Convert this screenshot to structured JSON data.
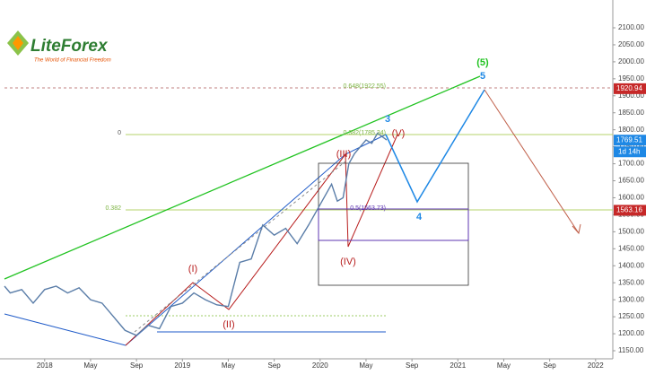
{
  "logo": {
    "brand": "LiteForex",
    "tagline": "The World of Financial Freedom"
  },
  "chart_data": {
    "type": "line",
    "color": "#5a7da8",
    "x": [
      -3.5,
      -3,
      -2,
      -1,
      0,
      1,
      2,
      3,
      4,
      5,
      6,
      7,
      8,
      9,
      10,
      11,
      12,
      13,
      14,
      15,
      16,
      17,
      18,
      19,
      20,
      21,
      22,
      23,
      24,
      25,
      25.5,
      26,
      26.5,
      27,
      28,
      28.5,
      29,
      29.8
    ],
    "values": [
      1340,
      1320,
      1330,
      1290,
      1330,
      1340,
      1320,
      1335,
      1300,
      1290,
      1250,
      1210,
      1195,
      1225,
      1215,
      1280,
      1290,
      1320,
      1300,
      1285,
      1280,
      1410,
      1420,
      1520,
      1490,
      1510,
      1465,
      1520,
      1580,
      1640,
      1590,
      1600,
      1700,
      1730,
      1770,
      1760,
      1790,
      1770
    ],
    "xlim": [
      -3.5,
      49.5
    ],
    "xticks": [
      {
        "value": 0,
        "label": "2018"
      },
      {
        "value": 4,
        "label": "May"
      },
      {
        "value": 8,
        "label": "Sep"
      },
      {
        "value": 12,
        "label": "2019"
      },
      {
        "value": 16,
        "label": "May"
      },
      {
        "value": 20,
        "label": "Sep"
      },
      {
        "value": 24,
        "label": "2020"
      },
      {
        "value": 28,
        "label": "May"
      },
      {
        "value": 32,
        "label": "Sep"
      },
      {
        "value": 36,
        "label": "2021"
      },
      {
        "value": 40,
        "label": "May"
      },
      {
        "value": 44,
        "label": "Sep"
      },
      {
        "value": 48,
        "label": "2022"
      }
    ],
    "ylim": [
      1150,
      2100
    ],
    "yticks": [
      {
        "value": 1150,
        "label": "1150.00"
      },
      {
        "value": 1200,
        "label": "1200.00"
      },
      {
        "value": 1250,
        "label": "1250.00"
      },
      {
        "value": 1300,
        "label": "1300.00"
      },
      {
        "value": 1350,
        "label": "1350.00"
      },
      {
        "value": 1400,
        "label": "1400.00"
      },
      {
        "value": 1450,
        "label": "1450.00"
      },
      {
        "value": 1500,
        "label": "1500.00"
      },
      {
        "value": 1550,
        "label": "1550.00"
      },
      {
        "value": 1600,
        "label": "1600.00"
      },
      {
        "value": 1650,
        "label": "1650.00"
      },
      {
        "value": 1700,
        "label": "1700.00"
      },
      {
        "value": 1750,
        "label": "1750.00"
      },
      {
        "value": 1800,
        "label": "1800.00"
      },
      {
        "value": 1850,
        "label": "1850.00"
      },
      {
        "value": 1900,
        "label": "1900.00"
      },
      {
        "value": 1950,
        "label": "1950.00"
      },
      {
        "value": 2000,
        "label": "2000.00"
      },
      {
        "value": 2050,
        "label": "2050.00"
      },
      {
        "value": 2100,
        "label": "2100.00"
      }
    ],
    "price_tags": [
      {
        "value": 1920.94,
        "color": "#c62828"
      },
      {
        "value": 1769.51,
        "color": "#1e88e5"
      },
      {
        "value": 1563.16,
        "color": "#c62828"
      }
    ],
    "countdown": "1d 14h",
    "wave_labels": [
      "(I)",
      "(II)",
      "(III)",
      "(IV)",
      "(V)",
      "3",
      "4",
      "5",
      "(5)"
    ],
    "fib_labels": [
      "0",
      "0.382",
      "0.648(1922.55)",
      "0.382(1785.34)",
      "0.5(1563.73)"
    ]
  }
}
